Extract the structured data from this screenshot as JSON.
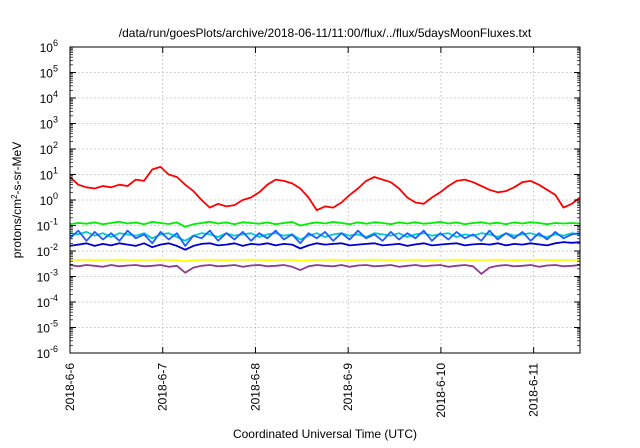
{
  "chart_data": {
    "type": "line",
    "title": "/data/run/goesPlots/archive/2018-06-11/11:00/flux/../flux/5daysMoonFluxes.txt",
    "xlabel": "Coordinated Universal Time (UTC)",
    "ylabel": {
      "base": "protons/cm",
      "sup": "2",
      "rest": "-s-sr-MeV"
    },
    "yscale": "log",
    "ylim_exp": [
      -6,
      6
    ],
    "yticks": [
      {
        "mant": "10",
        "exp": "6"
      },
      {
        "mant": "10",
        "exp": "5"
      },
      {
        "mant": "10",
        "exp": "4"
      },
      {
        "mant": "10",
        "exp": "3"
      },
      {
        "mant": "10",
        "exp": "2"
      },
      {
        "mant": "10",
        "exp": "1"
      },
      {
        "mant": "10",
        "exp": "0"
      },
      {
        "mant": "10",
        "exp": "-1"
      },
      {
        "mant": "10",
        "exp": "-2"
      },
      {
        "mant": "10",
        "exp": "-3"
      },
      {
        "mant": "10",
        "exp": "-4"
      },
      {
        "mant": "10",
        "exp": "-5"
      },
      {
        "mant": "10",
        "exp": "-6"
      }
    ],
    "xticks": [
      "2018-6-6",
      "2018-6-7",
      "2018-6-8",
      "2018-6-9",
      "2018-6-10",
      "2018-6-11"
    ],
    "xlim_days": [
      0,
      5.5
    ],
    "grid": true,
    "series": [
      {
        "color": "#ff0000",
        "values_log10": [
          0.9,
          0.6,
          0.5,
          0.45,
          0.55,
          0.5,
          0.6,
          0.55,
          0.8,
          0.75,
          1.2,
          1.3,
          1.0,
          0.9,
          0.6,
          0.35,
          0.0,
          -0.3,
          -0.15,
          -0.25,
          -0.2,
          0.0,
          0.1,
          0.3,
          0.6,
          0.8,
          0.75,
          0.65,
          0.45,
          0.1,
          -0.4,
          -0.25,
          -0.3,
          -0.1,
          0.2,
          0.45,
          0.75,
          0.9,
          0.8,
          0.7,
          0.45,
          0.1,
          -0.1,
          -0.15,
          0.1,
          0.3,
          0.55,
          0.75,
          0.8,
          0.7,
          0.55,
          0.4,
          0.3,
          0.35,
          0.5,
          0.7,
          0.75,
          0.6,
          0.4,
          0.2,
          -0.3,
          -0.15,
          0.1
        ]
      },
      {
        "color": "#00ee00",
        "values_log10": [
          -0.95,
          -0.9,
          -0.93,
          -0.88,
          -0.95,
          -0.9,
          -0.85,
          -0.92,
          -0.88,
          -0.95,
          -0.86,
          -0.9,
          -0.94,
          -0.88,
          -1.05,
          -0.95,
          -0.9,
          -0.85,
          -0.92,
          -0.88,
          -0.95,
          -0.87,
          -0.9,
          -0.93,
          -0.88,
          -0.95,
          -0.9,
          -0.86,
          -1.0,
          -0.93,
          -0.88,
          -0.92,
          -0.86,
          -0.9,
          -0.95,
          -0.88,
          -0.93,
          -0.87,
          -0.9,
          -0.95,
          -0.88,
          -0.92,
          -0.87,
          -0.93,
          -0.9,
          -0.86,
          -0.92,
          -0.88,
          -0.95,
          -0.9,
          -0.87,
          -0.93,
          -0.89,
          -0.95,
          -0.88,
          -0.92,
          -0.87,
          -0.9,
          -0.95,
          -0.9,
          -0.92,
          -0.9,
          -0.93
        ]
      },
      {
        "color": "#00cccc",
        "values_log10": [
          -1.3,
          -1.35,
          -1.25,
          -1.4,
          -1.3,
          -1.45,
          -1.3,
          -1.35,
          -1.4,
          -1.3,
          -1.5,
          -1.35,
          -1.3,
          -1.45,
          -1.6,
          -1.4,
          -1.3,
          -1.35,
          -1.45,
          -1.3,
          -1.4,
          -1.35,
          -1.3,
          -1.45,
          -1.35,
          -1.3,
          -1.4,
          -1.35,
          -1.55,
          -1.4,
          -1.3,
          -1.45,
          -1.35,
          -1.3,
          -1.4,
          -1.35,
          -1.45,
          -1.3,
          -1.35,
          -1.4,
          -1.3,
          -1.45,
          -1.35,
          -1.3,
          -1.4,
          -1.35,
          -1.3,
          -1.45,
          -1.35,
          -1.4,
          -1.3,
          -1.35,
          -1.45,
          -1.3,
          -1.4,
          -1.35,
          -1.3,
          -1.4,
          -1.45,
          -1.35,
          -1.4,
          -1.3,
          -1.35
        ]
      },
      {
        "color": "#2060ff",
        "values_log10": [
          -1.5,
          -1.2,
          -1.6,
          -1.25,
          -1.55,
          -1.3,
          -1.6,
          -1.2,
          -1.5,
          -1.35,
          -1.7,
          -1.25,
          -1.55,
          -1.3,
          -1.8,
          -1.4,
          -1.5,
          -1.2,
          -1.6,
          -1.3,
          -1.55,
          -1.25,
          -1.6,
          -1.3,
          -1.5,
          -1.2,
          -1.55,
          -1.35,
          -1.7,
          -1.3,
          -1.5,
          -1.25,
          -1.6,
          -1.3,
          -1.55,
          -1.2,
          -1.5,
          -1.35,
          -1.6,
          -1.25,
          -1.55,
          -1.3,
          -1.5,
          -1.2,
          -1.6,
          -1.3,
          -1.55,
          -1.25,
          -1.5,
          -1.35,
          -1.6,
          -1.2,
          -1.55,
          -1.3,
          -1.5,
          -1.25,
          -1.6,
          -1.3,
          -1.55,
          -1.25,
          -1.5,
          -1.35,
          -1.3
        ]
      },
      {
        "color": "#0000cc",
        "values_log10": [
          -1.8,
          -1.75,
          -1.7,
          -1.8,
          -1.72,
          -1.78,
          -1.7,
          -1.75,
          -1.8,
          -1.7,
          -1.85,
          -1.75,
          -1.7,
          -1.8,
          -1.95,
          -1.8,
          -1.72,
          -1.7,
          -1.78,
          -1.75,
          -1.7,
          -1.8,
          -1.72,
          -1.75,
          -1.7,
          -1.78,
          -1.72,
          -1.75,
          -1.9,
          -1.78,
          -1.7,
          -1.75,
          -1.72,
          -1.7,
          -1.78,
          -1.75,
          -1.72,
          -1.7,
          -1.78,
          -1.75,
          -1.72,
          -1.8,
          -1.74,
          -1.7,
          -1.78,
          -1.75,
          -1.72,
          -1.7,
          -1.78,
          -1.74,
          -1.72,
          -1.75,
          -1.7,
          -1.78,
          -1.72,
          -1.75,
          -1.7,
          -1.74,
          -1.78,
          -1.7,
          -1.65,
          -1.68,
          -1.65
        ]
      },
      {
        "color": "#ffff00",
        "values_log10": [
          -2.35,
          -2.35,
          -2.34,
          -2.36,
          -2.35,
          -2.35,
          -2.34,
          -2.35,
          -2.36,
          -2.35,
          -2.35,
          -2.34,
          -2.35,
          -2.36,
          -2.4,
          -2.36,
          -2.35,
          -2.34,
          -2.35,
          -2.36,
          -2.35,
          -2.35,
          -2.34,
          -2.35,
          -2.36,
          -2.35,
          -2.35,
          -2.34,
          -2.38,
          -2.36,
          -2.35,
          -2.35,
          -2.34,
          -2.35,
          -2.36,
          -2.35,
          -2.35,
          -2.34,
          -2.35,
          -2.36,
          -2.35,
          -2.35,
          -2.34,
          -2.35,
          -2.36,
          -2.35,
          -2.35,
          -2.34,
          -2.35,
          -2.36,
          -2.35,
          -2.35,
          -2.34,
          -2.35,
          -2.36,
          -2.35,
          -2.35,
          -2.34,
          -2.35,
          -2.36,
          -2.35,
          -2.35,
          -2.35
        ]
      },
      {
        "color": "#8e3d8e",
        "values_log10": [
          -2.55,
          -2.6,
          -2.55,
          -2.58,
          -2.62,
          -2.55,
          -2.6,
          -2.57,
          -2.55,
          -2.6,
          -2.58,
          -2.55,
          -2.62,
          -2.58,
          -2.85,
          -2.65,
          -2.58,
          -2.55,
          -2.6,
          -2.58,
          -2.55,
          -2.62,
          -2.57,
          -2.55,
          -2.6,
          -2.58,
          -2.55,
          -2.62,
          -2.75,
          -2.6,
          -2.55,
          -2.58,
          -2.6,
          -2.55,
          -2.62,
          -2.57,
          -2.55,
          -2.6,
          -2.58,
          -2.55,
          -2.62,
          -2.58,
          -2.55,
          -2.6,
          -2.57,
          -2.55,
          -2.62,
          -2.58,
          -2.55,
          -2.6,
          -2.9,
          -2.65,
          -2.58,
          -2.55,
          -2.6,
          -2.58,
          -2.55,
          -2.62,
          -2.57,
          -2.55,
          -2.6,
          -2.58,
          -2.55
        ]
      }
    ]
  }
}
